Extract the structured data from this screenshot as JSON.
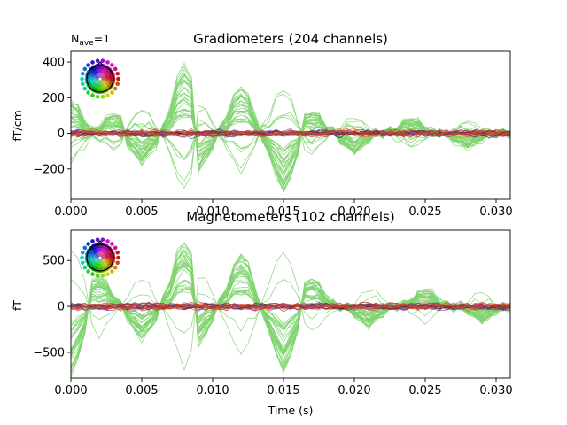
{
  "figure": {
    "nave_base": "N",
    "nave_sub": "ave",
    "nave_value": "=1",
    "xlabel": "Time (s)"
  },
  "chart_data": [
    {
      "type": "line",
      "title": "Gradiometers (204 channels)",
      "ylabel": "fT/cm",
      "xlim": [
        0.0,
        0.031
      ],
      "ylim": [
        -370,
        460
      ],
      "xticks": [
        "0.000",
        "0.005",
        "0.010",
        "0.015",
        "0.020",
        "0.025",
        "0.030"
      ],
      "xtick_values": [
        0.0,
        0.005,
        0.01,
        0.015,
        0.02,
        0.025,
        0.03
      ],
      "yticks": [
        "400",
        "200",
        "0",
        "−200"
      ],
      "ytick_values": [
        400,
        200,
        0,
        -200
      ],
      "highlight_color": "#7fd36f",
      "highlight_peaks": [
        {
          "x": 0.0,
          "y": 190
        },
        {
          "x": 0.003,
          "y": 120
        },
        {
          "x": 0.005,
          "y": -160
        },
        {
          "x": 0.008,
          "y": 385
        },
        {
          "x": 0.009,
          "y": -210
        },
        {
          "x": 0.012,
          "y": 270
        },
        {
          "x": 0.015,
          "y": -330
        },
        {
          "x": 0.017,
          "y": 130
        },
        {
          "x": 0.02,
          "y": -110
        },
        {
          "x": 0.024,
          "y": 90
        },
        {
          "x": 0.028,
          "y": -80
        }
      ]
    },
    {
      "type": "line",
      "title": "Magnetometers (102 channels)",
      "ylabel": "fT",
      "xlim": [
        0.0,
        0.031
      ],
      "ylim": [
        -780,
        830
      ],
      "xticks": [
        "0.000",
        "0.005",
        "0.010",
        "0.015",
        "0.020",
        "0.025",
        "0.030"
      ],
      "xtick_values": [
        0.0,
        0.005,
        0.01,
        0.015,
        0.02,
        0.025,
        0.03
      ],
      "yticks": [
        "500",
        "0",
        "−500"
      ],
      "ytick_values": [
        500,
        0,
        -500
      ],
      "highlight_color": "#7fd36f",
      "highlight_peaks": [
        {
          "x": 0.0,
          "y": -700
        },
        {
          "x": 0.002,
          "y": 330
        },
        {
          "x": 0.005,
          "y": -330
        },
        {
          "x": 0.008,
          "y": 700
        },
        {
          "x": 0.009,
          "y": -380
        },
        {
          "x": 0.012,
          "y": 560
        },
        {
          "x": 0.015,
          "y": -680
        },
        {
          "x": 0.017,
          "y": 300
        },
        {
          "x": 0.021,
          "y": -200
        },
        {
          "x": 0.025,
          "y": 180
        },
        {
          "x": 0.029,
          "y": -150
        }
      ]
    }
  ]
}
